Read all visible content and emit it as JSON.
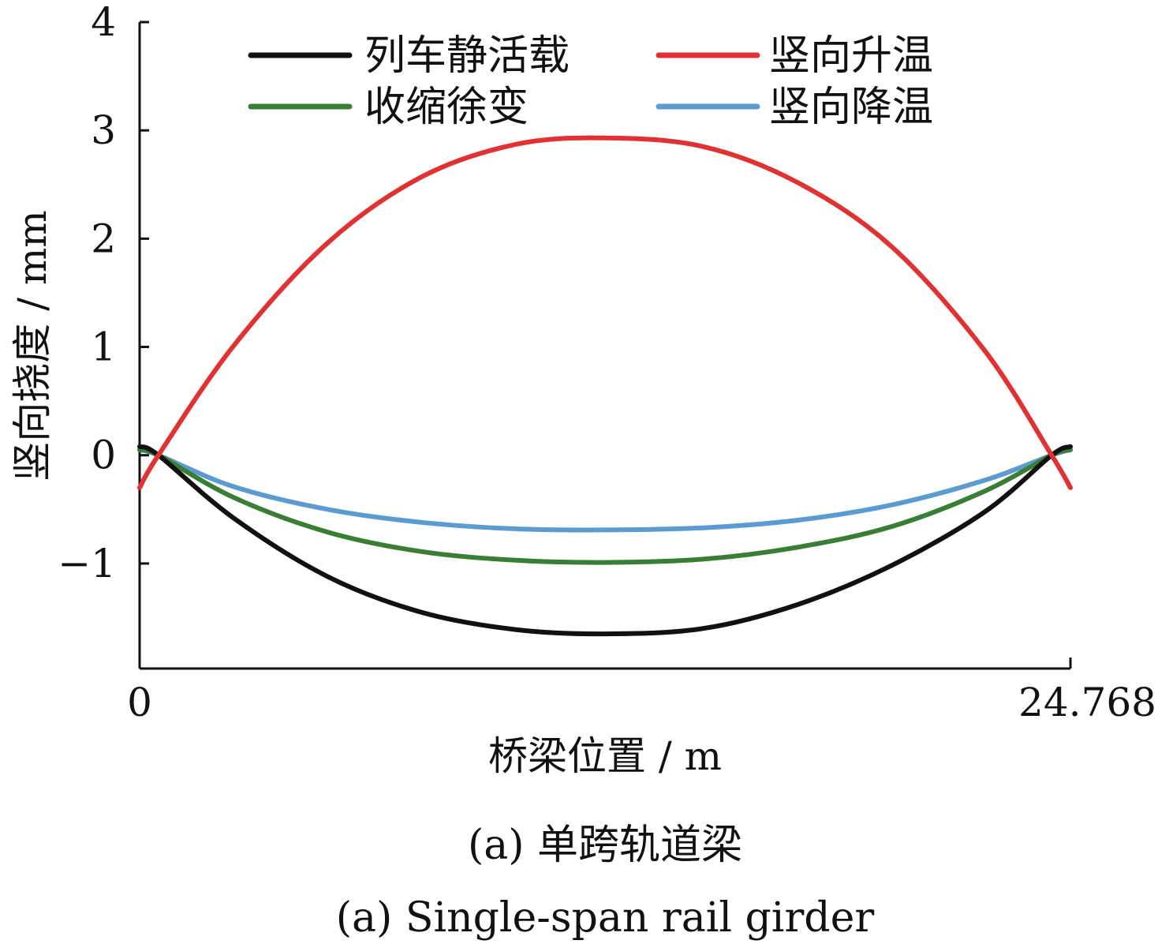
{
  "chart_data": {
    "type": "line",
    "xlabel": "桥梁位置 / m",
    "ylabel": "竖向挠度 / mm",
    "xlim": [
      0,
      24.768
    ],
    "ylim": [
      -1.97,
      4
    ],
    "x_ticks": [
      {
        "value": 0,
        "label": "0"
      },
      {
        "value": 24.768,
        "label": "24.768"
      }
    ],
    "y_ticks": [
      {
        "value": 4,
        "label": "4"
      },
      {
        "value": 3,
        "label": "3"
      },
      {
        "value": 2,
        "label": "2"
      },
      {
        "value": 1,
        "label": "1"
      },
      {
        "value": 0,
        "label": "0"
      },
      {
        "value": -1,
        "label": "−1"
      }
    ],
    "legend_position": "top",
    "grid": false,
    "x": [
      0,
      0.5,
      2.5,
      5,
      7.5,
      10,
      12.384,
      15,
      17.5,
      20,
      22.5,
      24.268,
      24.768
    ],
    "series": [
      {
        "name": "列车静活载",
        "color": "#111111",
        "values": [
          0.08,
          0.0,
          -0.58,
          -1.12,
          -1.45,
          -1.61,
          -1.65,
          -1.6,
          -1.38,
          -1.02,
          -0.52,
          0.0,
          0.08
        ]
      },
      {
        "name": "竖向升温",
        "color": "#e03232",
        "values": [
          -0.3,
          0.0,
          1.01,
          1.96,
          2.57,
          2.87,
          2.93,
          2.85,
          2.52,
          1.93,
          0.96,
          0.0,
          -0.3
        ]
      },
      {
        "name": "收缩徐变",
        "color": "#3a7d35",
        "values": [
          0.05,
          0.0,
          -0.39,
          -0.71,
          -0.89,
          -0.97,
          -0.99,
          -0.96,
          -0.85,
          -0.66,
          -0.33,
          0.0,
          0.05
        ]
      },
      {
        "name": "竖向降温",
        "color": "#5b9bd0",
        "values": [
          0.05,
          0.0,
          -0.29,
          -0.5,
          -0.62,
          -0.68,
          -0.69,
          -0.67,
          -0.6,
          -0.46,
          -0.23,
          0.0,
          0.05
        ]
      }
    ]
  },
  "captions": {
    "cn": "(a) 单跨轨道梁",
    "en": "(a) Single-span rail girder"
  }
}
